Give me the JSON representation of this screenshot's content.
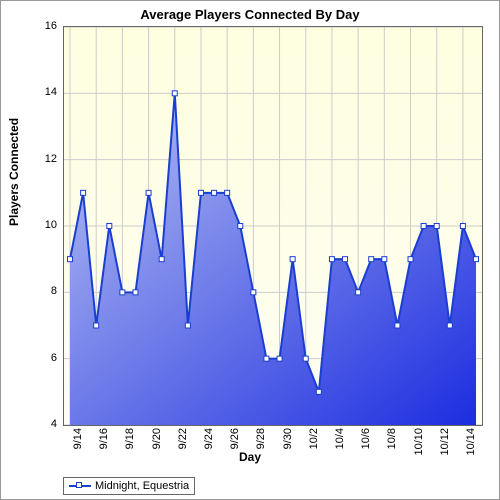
{
  "chart": {
    "type": "area",
    "title": "Average Players Connected By Day",
    "title_fontsize": 13,
    "title_fontweight": "bold",
    "xlabel": "Day",
    "ylabel": "Players Connected",
    "label_fontsize": 12,
    "tick_fontsize": 11,
    "background_color": "#ffffff",
    "plot_bg_gradient": {
      "stop1": "#fefee0",
      "stop2": "#fefef2"
    },
    "area_gradient": {
      "stop1": "#b9c3f2",
      "stop2": "#1c2de0"
    },
    "line_color": "#1a3fd0",
    "line_width": 2,
    "marker_style": "square",
    "marker_size": 5,
    "marker_fill": "#ffffff",
    "marker_border": "#1a3fd0",
    "grid_color": "#cccccc",
    "grid_on": true,
    "border_color": "#666666",
    "ylim": [
      4,
      16
    ],
    "ytick_step": 2,
    "yticks": [
      4,
      6,
      8,
      10,
      12,
      14,
      16
    ],
    "x_categories": [
      "9/14",
      "9/15",
      "9/16",
      "9/17",
      "9/18",
      "9/19",
      "9/20",
      "9/21",
      "9/22",
      "9/23",
      "9/24",
      "9/25",
      "9/26",
      "9/27",
      "9/28",
      "9/29",
      "9/30",
      "10/1",
      "10/2",
      "10/3",
      "10/4",
      "10/5",
      "10/6",
      "10/7",
      "10/8",
      "10/9",
      "10/10",
      "10/11",
      "10/12",
      "10/13",
      "10/14",
      "10/15"
    ],
    "x_tick_labels": [
      "9/14",
      "9/16",
      "9/18",
      "9/20",
      "9/22",
      "9/24",
      "9/26",
      "9/28",
      "9/30",
      "10/2",
      "10/4",
      "10/6",
      "10/8",
      "10/10",
      "10/12",
      "10/14"
    ],
    "x_tick_step": 2,
    "values": [
      9,
      11,
      7,
      10,
      8,
      8,
      11,
      9,
      14,
      7,
      11,
      11,
      11,
      10,
      8,
      6,
      6,
      9,
      6,
      5,
      9,
      9,
      8,
      9,
      9,
      7,
      9,
      10,
      10,
      7,
      10,
      9
    ],
    "legend": {
      "position": "bottom-left",
      "items": [
        {
          "label": "Midnight, Equestria",
          "color": "#1a3fd0",
          "marker_fill": "#ffffff"
        }
      ]
    }
  }
}
